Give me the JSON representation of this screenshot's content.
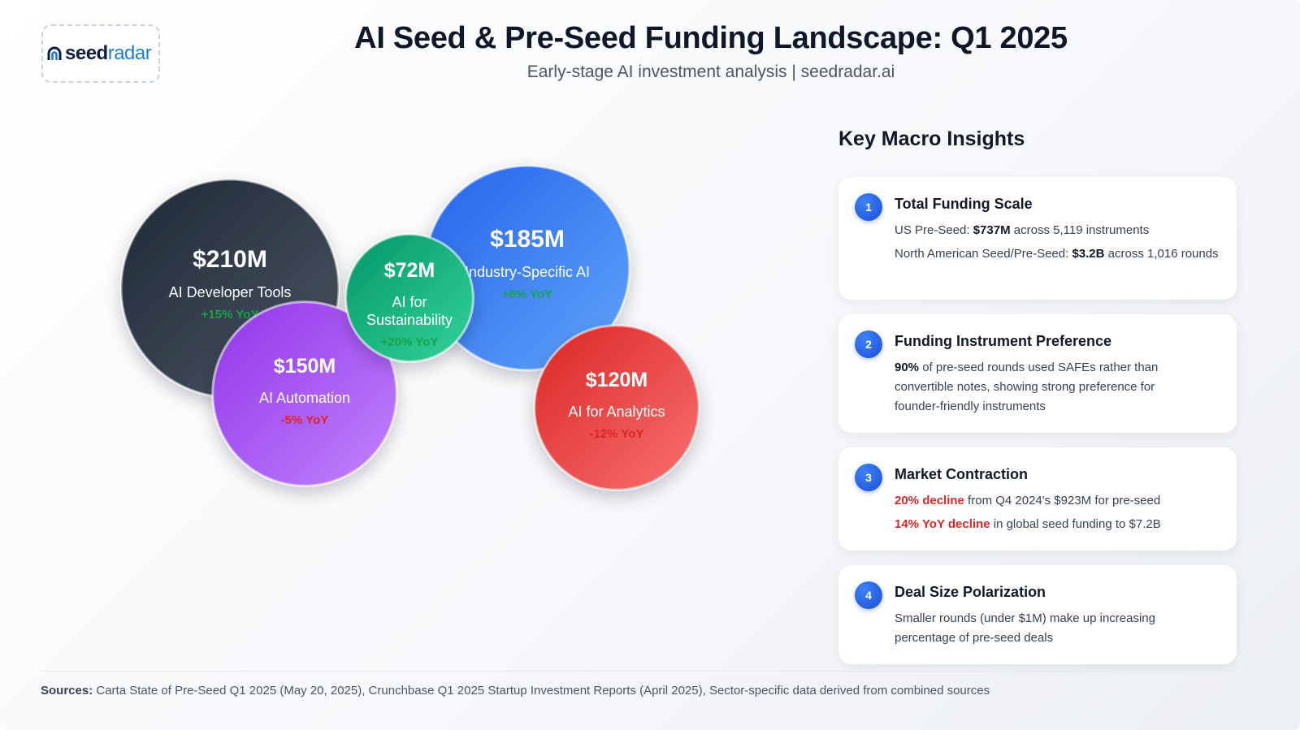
{
  "logo": {
    "part_a": "seed",
    "part_b": "radar",
    "icon": "seedradar-logo-icon"
  },
  "header": {
    "title": "AI Seed & Pre-Seed Funding Landscape: Q1 2025",
    "subtitle": "Early-stage AI investment analysis | seedradar.ai"
  },
  "chart_data": {
    "type": "bubble",
    "unit": "$M",
    "bubbles": [
      {
        "category": "AI Developer Tools",
        "amount_label": "$210M",
        "value": 210,
        "yoy_label": "+15% YoY",
        "yoy": 15,
        "color": "#1f2937",
        "color_light": "#4b5563"
      },
      {
        "category": "Industry-Specific AI",
        "amount_label": "$185M",
        "value": 185,
        "yoy_label": "+8% YoY",
        "yoy": 8,
        "color": "#2563eb",
        "color_light": "#60a5fa"
      },
      {
        "category": "AI Automation",
        "amount_label": "$150M",
        "value": 150,
        "yoy_label": "-5% YoY",
        "yoy": -5,
        "color": "#9333ea",
        "color_light": "#c084fc"
      },
      {
        "category": "AI for Analytics",
        "amount_label": "$120M",
        "value": 120,
        "yoy_label": "-12% YoY",
        "yoy": -12,
        "color": "#dc2626",
        "color_light": "#f87171"
      },
      {
        "category": "AI for Sustainability",
        "category_lines": [
          "AI for",
          "Sustainability"
        ],
        "amount_label": "$72M",
        "value": 72,
        "yoy_label": "+20% YoY",
        "yoy": 20,
        "color": "#059669",
        "color_light": "#34d399"
      }
    ],
    "colors": {
      "positive": "#16a34a",
      "negative": "#dc2626"
    }
  },
  "insights": {
    "title": "Key Macro Insights",
    "cards": [
      {
        "number": "1",
        "title": "Total Funding Scale",
        "line1_pre": "US Pre-Seed: ",
        "line1_bold": "$737M",
        "line1_post": " across 5,119 instruments",
        "line2_pre": "North American Seed/Pre-Seed: ",
        "line2_bold": "$3.2B",
        "line2_post": " across 1,016 rounds"
      },
      {
        "number": "2",
        "title": "Funding Instrument Preference",
        "line1_bold": "90%",
        "line1_post": " of pre-seed rounds used SAFEs rather than convertible notes, showing strong preference for founder-friendly instruments"
      },
      {
        "number": "3",
        "title": "Market Contraction",
        "line1_bold": "20% decline",
        "line1_post": " from Q4 2024's $923M for pre-seed",
        "line2_bold": "14% YoY decline",
        "line2_post": " in global seed funding to $7.2B"
      },
      {
        "number": "4",
        "title": "Deal Size Polarization",
        "line1_post": "Smaller rounds (under $1M) make up increasing percentage of pre-seed deals"
      }
    ]
  },
  "sources": {
    "label": "Sources:",
    "text": " Carta State of Pre-Seed Q1 2025 (May 20, 2025), Crunchbase Q1 2025 Startup Investment Reports (April 2025), Sector-specific data derived from combined sources"
  }
}
